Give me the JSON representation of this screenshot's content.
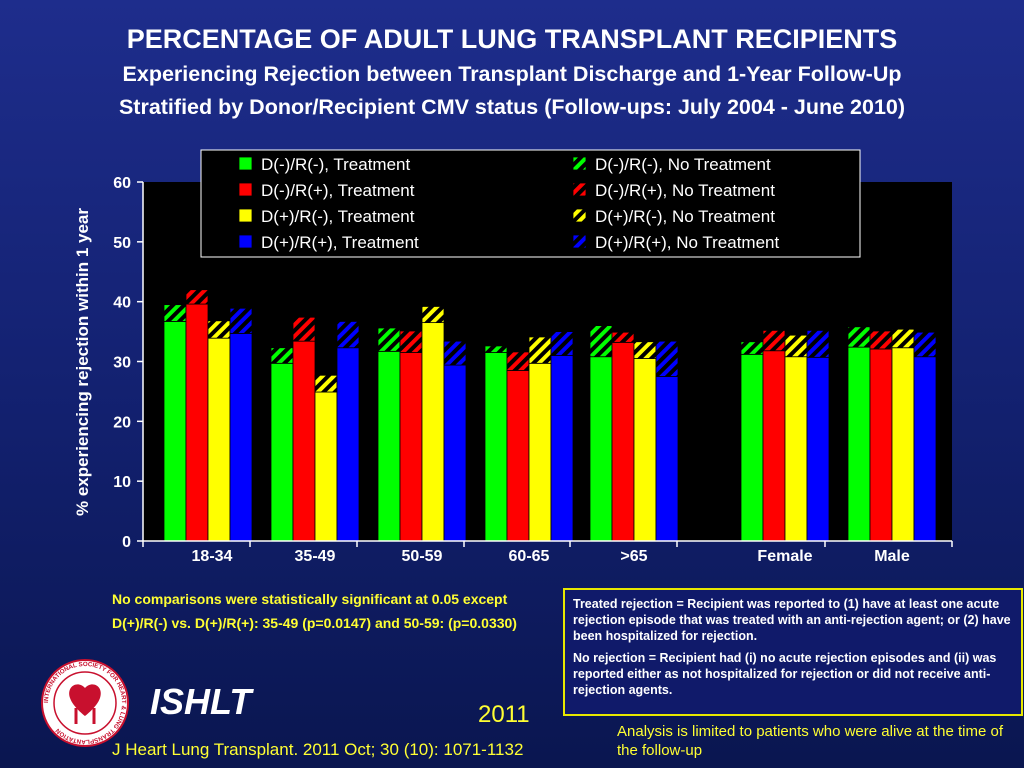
{
  "titles": {
    "main": "PERCENTAGE OF ADULT LUNG TRANSPLANT RECIPIENTS",
    "sub1": "Experiencing Rejection between Transplant Discharge and 1-Year Follow-Up",
    "sub2": "Stratified by Donor/Recipient CMV status (Follow-ups: July 2004 - June 2010)"
  },
  "chart_data": {
    "type": "bar",
    "subtype": "stacked-grouped",
    "ylabel": "% experiencing rejection within 1 year",
    "xlabel": "",
    "ylim": [
      0,
      60
    ],
    "yticks": [
      0,
      10,
      20,
      30,
      40,
      50,
      60
    ],
    "grid": false,
    "legend_position": "top-right",
    "categories": [
      "18-34",
      "35-49",
      "50-59",
      "60-65",
      ">65",
      "Female",
      "Male"
    ],
    "groups": [
      {
        "name": "D(-)/R(-)",
        "color": "#00ff00"
      },
      {
        "name": "D(-)/R(+)",
        "color": "#ff0000"
      },
      {
        "name": "D(+)/R(-)",
        "color": "#ffff00"
      },
      {
        "name": "D(+)/R(+)",
        "color": "#0000ff"
      }
    ],
    "legend": [
      "D(-)/R(-), Treatment",
      "D(-)/R(-), No Treatment",
      "D(-)/R(+), Treatment",
      "D(-)/R(+), No Treatment",
      "D(+)/R(-), Treatment",
      "D(+)/R(-), No Treatment",
      "D(+)/R(+), Treatment",
      "D(+)/R(+), No Treatment"
    ],
    "series": [
      {
        "name": "D(-)/R(-), Treatment",
        "values": [
          36.7,
          29.7,
          31.7,
          31.5,
          30.8,
          31.2,
          32.4
        ]
      },
      {
        "name": "D(-)/R(-), No Treatment",
        "values": [
          2.8,
          2.6,
          3.9,
          1.1,
          5.2,
          2.1,
          3.4
        ]
      },
      {
        "name": "D(-)/R(+), Treatment",
        "values": [
          39.6,
          33.4,
          31.5,
          28.5,
          33.2,
          31.8,
          32.1
        ]
      },
      {
        "name": "D(-)/R(+), No Treatment",
        "values": [
          2.4,
          4.0,
          3.6,
          3.1,
          1.7,
          3.4,
          3.0
        ]
      },
      {
        "name": "D(+)/R(-), Treatment",
        "values": [
          33.9,
          24.9,
          36.5,
          29.7,
          30.5,
          30.8,
          32.3
        ]
      },
      {
        "name": "D(+)/R(-), No Treatment",
        "values": [
          2.9,
          2.8,
          2.7,
          4.4,
          2.8,
          3.6,
          3.1
        ]
      },
      {
        "name": "D(+)/R(+), Treatment",
        "values": [
          34.7,
          32.3,
          29.4,
          31.0,
          27.5,
          30.7,
          30.8
        ]
      },
      {
        "name": "D(+)/R(+), No Treatment",
        "values": [
          4.2,
          4.4,
          4.0,
          4.0,
          5.9,
          4.5,
          4.1
        ]
      }
    ]
  },
  "notes": {
    "significance": "No comparisons were statistically significant at 0.05 except D(+)/R(-) vs. D(+)/R(+): 35-49 (p=0.0147) and 50-59: (p=0.0330)",
    "treated_def": "Treated rejection = Recipient was reported to (1) have at least one acute rejection episode that was treated with an  anti-rejection agent; or (2) have been hospitalized for rejection.",
    "no_rejection_def": "No rejection  = Recipient had (i) no acute rejection episodes and (ii) was reported either as not hospitalized for rejection or did not receive anti-rejection agents.",
    "analysis": "Analysis is limited to patients who were alive at the time of the follow-up"
  },
  "footer": {
    "brand": "ISHLT",
    "year": "2011",
    "citation": "J Heart Lung Transplant. 2011 Oct; 30 (10): 1071-1132",
    "logo_text": "INTERNATIONAL SOCIETY FOR HEART & LUNG TRANSPLANTATION"
  }
}
